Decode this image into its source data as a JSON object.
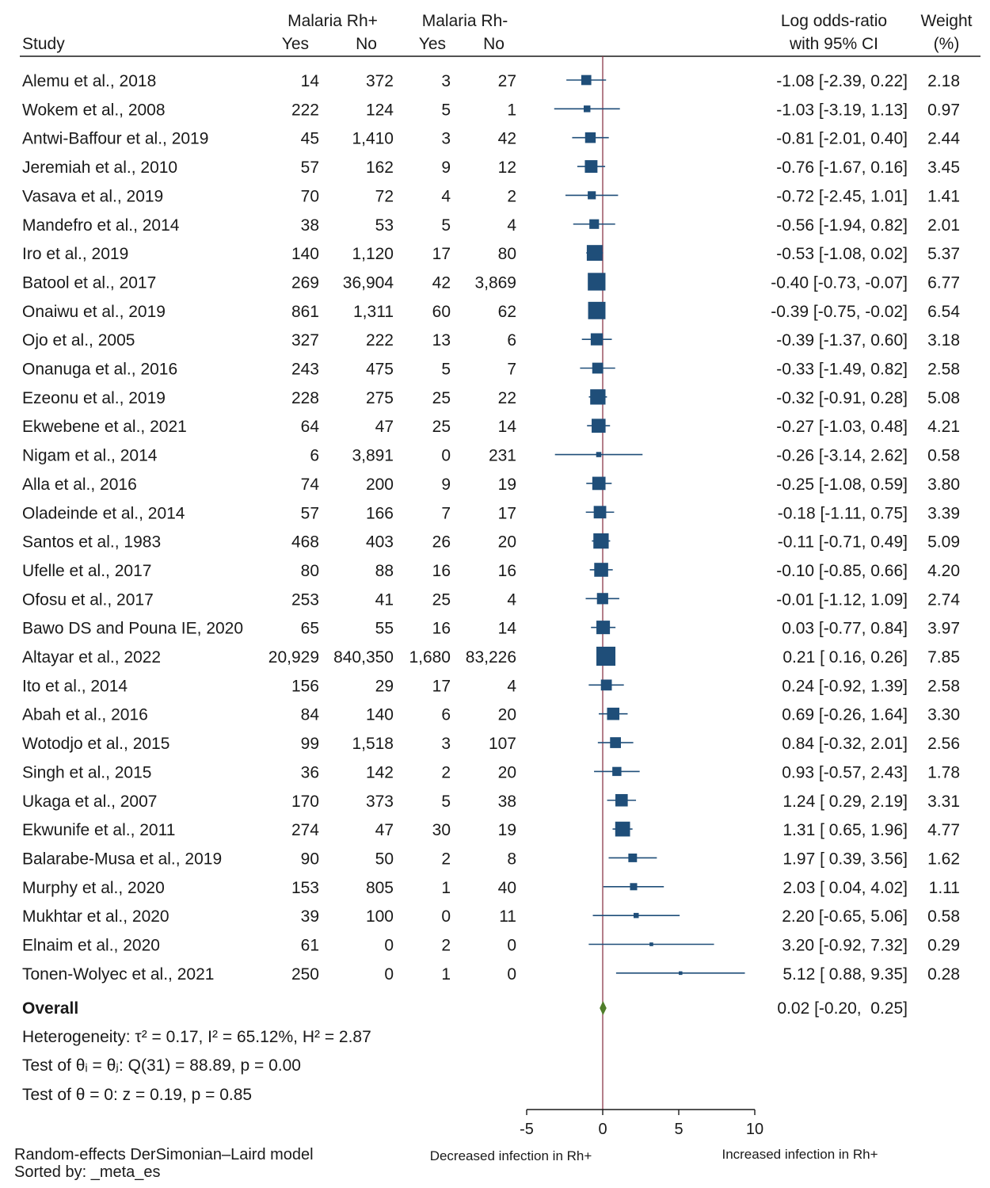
{
  "chart_data": {
    "type": "forest",
    "title": "",
    "columns": {
      "study": "Study",
      "rh_pos_group": "Malaria Rh+",
      "rh_neg_group": "Malaria Rh-",
      "yes": "Yes",
      "no": "No",
      "effect_line1": "Log odds-ratio",
      "effect_line2": "with 95% CI",
      "weight_line1": "Weight",
      "weight_line2": "(%)"
    },
    "studies": [
      {
        "name": "Alemu et al., 2018",
        "pos_yes": "14",
        "pos_no": "372",
        "neg_yes": "3",
        "neg_no": "27",
        "es": -1.08,
        "lo": -2.39,
        "hi": 0.22,
        "ci_text": "-1.08 [-2.39,  0.22]",
        "weight": 2.18,
        "weight_text": "2.18"
      },
      {
        "name": "Wokem et al., 2008",
        "pos_yes": "222",
        "pos_no": "124",
        "neg_yes": "5",
        "neg_no": "1",
        "es": -1.03,
        "lo": -3.19,
        "hi": 1.13,
        "ci_text": "-1.03 [-3.19,  1.13]",
        "weight": 0.97,
        "weight_text": "0.97"
      },
      {
        "name": "Antwi-Baffour et al., 2019",
        "pos_yes": "45",
        "pos_no": "1,410",
        "neg_yes": "3",
        "neg_no": "42",
        "es": -0.81,
        "lo": -2.01,
        "hi": 0.4,
        "ci_text": "-0.81 [-2.01,  0.40]",
        "weight": 2.44,
        "weight_text": "2.44"
      },
      {
        "name": "Jeremiah et al., 2010",
        "pos_yes": "57",
        "pos_no": "162",
        "neg_yes": "9",
        "neg_no": "12",
        "es": -0.76,
        "lo": -1.67,
        "hi": 0.16,
        "ci_text": "-0.76 [-1.67,  0.16]",
        "weight": 3.45,
        "weight_text": "3.45"
      },
      {
        "name": "Vasava et al., 2019",
        "pos_yes": "70",
        "pos_no": "72",
        "neg_yes": "4",
        "neg_no": "2",
        "es": -0.72,
        "lo": -2.45,
        "hi": 1.01,
        "ci_text": "-0.72 [-2.45,  1.01]",
        "weight": 1.41,
        "weight_text": "1.41"
      },
      {
        "name": "Mandefro et al., 2014",
        "pos_yes": "38",
        "pos_no": "53",
        "neg_yes": "5",
        "neg_no": "4",
        "es": -0.56,
        "lo": -1.94,
        "hi": 0.82,
        "ci_text": "-0.56 [-1.94,  0.82]",
        "weight": 2.01,
        "weight_text": "2.01"
      },
      {
        "name": "Iro et al., 2019",
        "pos_yes": "140",
        "pos_no": "1,120",
        "neg_yes": "17",
        "neg_no": "80",
        "es": -0.53,
        "lo": -1.08,
        "hi": 0.02,
        "ci_text": "-0.53 [-1.08,  0.02]",
        "weight": 5.37,
        "weight_text": "5.37"
      },
      {
        "name": "Batool et al., 2017",
        "pos_yes": "269",
        "pos_no": "36,904",
        "neg_yes": "42",
        "neg_no": "3,869",
        "es": -0.4,
        "lo": -0.73,
        "hi": -0.07,
        "ci_text": "-0.40 [-0.73, -0.07]",
        "weight": 6.77,
        "weight_text": "6.77"
      },
      {
        "name": "Onaiwu et al., 2019",
        "pos_yes": "861",
        "pos_no": "1,311",
        "neg_yes": "60",
        "neg_no": "62",
        "es": -0.39,
        "lo": -0.75,
        "hi": -0.02,
        "ci_text": "-0.39 [-0.75, -0.02]",
        "weight": 6.54,
        "weight_text": "6.54"
      },
      {
        "name": "Ojo et al., 2005",
        "pos_yes": "327",
        "pos_no": "222",
        "neg_yes": "13",
        "neg_no": "6",
        "es": -0.39,
        "lo": -1.37,
        "hi": 0.6,
        "ci_text": "-0.39 [-1.37,  0.60]",
        "weight": 3.18,
        "weight_text": "3.18"
      },
      {
        "name": "Onanuga et al., 2016",
        "pos_yes": "243",
        "pos_no": "475",
        "neg_yes": "5",
        "neg_no": "7",
        "es": -0.33,
        "lo": -1.49,
        "hi": 0.82,
        "ci_text": "-0.33 [-1.49,  0.82]",
        "weight": 2.58,
        "weight_text": "2.58"
      },
      {
        "name": "Ezeonu et al., 2019",
        "pos_yes": "228",
        "pos_no": "275",
        "neg_yes": "25",
        "neg_no": "22",
        "es": -0.32,
        "lo": -0.91,
        "hi": 0.28,
        "ci_text": "-0.32 [-0.91,  0.28]",
        "weight": 5.08,
        "weight_text": "5.08"
      },
      {
        "name": "Ekwebene et al., 2021",
        "pos_yes": "64",
        "pos_no": "47",
        "neg_yes": "25",
        "neg_no": "14",
        "es": -0.27,
        "lo": -1.03,
        "hi": 0.48,
        "ci_text": "-0.27 [-1.03,  0.48]",
        "weight": 4.21,
        "weight_text": "4.21"
      },
      {
        "name": "Nigam et al., 2014",
        "pos_yes": "6",
        "pos_no": "3,891",
        "neg_yes": "0",
        "neg_no": "231",
        "es": -0.26,
        "lo": -3.14,
        "hi": 2.62,
        "ci_text": "-0.26 [-3.14,  2.62]",
        "weight": 0.58,
        "weight_text": "0.58"
      },
      {
        "name": "Alla et al., 2016",
        "pos_yes": "74",
        "pos_no": "200",
        "neg_yes": "9",
        "neg_no": "19",
        "es": -0.25,
        "lo": -1.08,
        "hi": 0.59,
        "ci_text": "-0.25 [-1.08,  0.59]",
        "weight": 3.8,
        "weight_text": "3.80"
      },
      {
        "name": "Oladeinde et al., 2014",
        "pos_yes": "57",
        "pos_no": "166",
        "neg_yes": "7",
        "neg_no": "17",
        "es": -0.18,
        "lo": -1.11,
        "hi": 0.75,
        "ci_text": "-0.18 [-1.11,  0.75]",
        "weight": 3.39,
        "weight_text": "3.39"
      },
      {
        "name": "Santos et al., 1983",
        "pos_yes": "468",
        "pos_no": "403",
        "neg_yes": "26",
        "neg_no": "20",
        "es": -0.11,
        "lo": -0.71,
        "hi": 0.49,
        "ci_text": "-0.11 [-0.71,  0.49]",
        "weight": 5.09,
        "weight_text": "5.09"
      },
      {
        "name": "Ufelle et al., 2017",
        "pos_yes": "80",
        "pos_no": "88",
        "neg_yes": "16",
        "neg_no": "16",
        "es": -0.1,
        "lo": -0.85,
        "hi": 0.66,
        "ci_text": "-0.10 [-0.85,  0.66]",
        "weight": 4.2,
        "weight_text": "4.20"
      },
      {
        "name": "Ofosu et al., 2017",
        "pos_yes": "253",
        "pos_no": "41",
        "neg_yes": "25",
        "neg_no": "4",
        "es": -0.01,
        "lo": -1.12,
        "hi": 1.09,
        "ci_text": "-0.01 [-1.12,  1.09]",
        "weight": 2.74,
        "weight_text": "2.74"
      },
      {
        "name": "Bawo DS and Pouna IE, 2020",
        "pos_yes": "65",
        "pos_no": "55",
        "neg_yes": "16",
        "neg_no": "14",
        "es": 0.03,
        "lo": -0.77,
        "hi": 0.84,
        "ci_text": "0.03 [-0.77,  0.84]",
        "weight": 3.97,
        "weight_text": "3.97"
      },
      {
        "name": "Altayar et al., 2022",
        "pos_yes": "20,929",
        "pos_no": "840,350",
        "neg_yes": "1,680",
        "neg_no": "83,226",
        "es": 0.21,
        "lo": 0.16,
        "hi": 0.26,
        "ci_text": "0.21 [ 0.16,  0.26]",
        "weight": 7.85,
        "weight_text": "7.85"
      },
      {
        "name": "Ito et al., 2014",
        "pos_yes": "156",
        "pos_no": "29",
        "neg_yes": "17",
        "neg_no": "4",
        "es": 0.24,
        "lo": -0.92,
        "hi": 1.39,
        "ci_text": "0.24 [-0.92,  1.39]",
        "weight": 2.58,
        "weight_text": "2.58"
      },
      {
        "name": "Abah et al., 2016",
        "pos_yes": "84",
        "pos_no": "140",
        "neg_yes": "6",
        "neg_no": "20",
        "es": 0.69,
        "lo": -0.26,
        "hi": 1.64,
        "ci_text": "0.69 [-0.26,  1.64]",
        "weight": 3.3,
        "weight_text": "3.30"
      },
      {
        "name": "Wotodjo et al., 2015",
        "pos_yes": "99",
        "pos_no": "1,518",
        "neg_yes": "3",
        "neg_no": "107",
        "es": 0.84,
        "lo": -0.32,
        "hi": 2.01,
        "ci_text": "0.84 [-0.32,  2.01]",
        "weight": 2.56,
        "weight_text": "2.56"
      },
      {
        "name": "Singh et al., 2015",
        "pos_yes": "36",
        "pos_no": "142",
        "neg_yes": "2",
        "neg_no": "20",
        "es": 0.93,
        "lo": -0.57,
        "hi": 2.43,
        "ci_text": "0.93 [-0.57,  2.43]",
        "weight": 1.78,
        "weight_text": "1.78"
      },
      {
        "name": "Ukaga et al., 2007",
        "pos_yes": "170",
        "pos_no": "373",
        "neg_yes": "5",
        "neg_no": "38",
        "es": 1.24,
        "lo": 0.29,
        "hi": 2.19,
        "ci_text": "1.24 [ 0.29,  2.19]",
        "weight": 3.31,
        "weight_text": "3.31"
      },
      {
        "name": "Ekwunife et al., 2011",
        "pos_yes": "274",
        "pos_no": "47",
        "neg_yes": "30",
        "neg_no": "19",
        "es": 1.31,
        "lo": 0.65,
        "hi": 1.96,
        "ci_text": "1.31 [ 0.65,  1.96]",
        "weight": 4.77,
        "weight_text": "4.77"
      },
      {
        "name": "Balarabe-Musa et al., 2019",
        "pos_yes": "90",
        "pos_no": "50",
        "neg_yes": "2",
        "neg_no": "8",
        "es": 1.97,
        "lo": 0.39,
        "hi": 3.56,
        "ci_text": "1.97 [ 0.39,  3.56]",
        "weight": 1.62,
        "weight_text": "1.62"
      },
      {
        "name": "Murphy et al., 2020",
        "pos_yes": "153",
        "pos_no": "805",
        "neg_yes": "1",
        "neg_no": "40",
        "es": 2.03,
        "lo": 0.04,
        "hi": 4.02,
        "ci_text": "2.03 [ 0.04,  4.02]",
        "weight": 1.11,
        "weight_text": "1.11"
      },
      {
        "name": "Mukhtar et al., 2020",
        "pos_yes": "39",
        "pos_no": "100",
        "neg_yes": "0",
        "neg_no": "11",
        "es": 2.2,
        "lo": -0.65,
        "hi": 5.06,
        "ci_text": "2.20 [-0.65,  5.06]",
        "weight": 0.58,
        "weight_text": "0.58"
      },
      {
        "name": "Elnaim et al., 2020",
        "pos_yes": "61",
        "pos_no": "0",
        "neg_yes": "2",
        "neg_no": "0",
        "es": 3.2,
        "lo": -0.92,
        "hi": 7.32,
        "ci_text": "3.20 [-0.92,  7.32]",
        "weight": 0.29,
        "weight_text": "0.29"
      },
      {
        "name": "Tonen-Wolyec et al., 2021",
        "pos_yes": "250",
        "pos_no": "0",
        "neg_yes": "1",
        "neg_no": "0",
        "es": 5.12,
        "lo": 0.88,
        "hi": 9.35,
        "ci_text": "5.12 [ 0.88,  9.35]",
        "weight": 0.28,
        "weight_text": "0.28"
      }
    ],
    "overall": {
      "label": "Overall",
      "es": 0.02,
      "lo": -0.2,
      "hi": 0.25,
      "ci_text": "0.02 [-0.20,  0.25]"
    },
    "heterogeneity": "Heterogeneity: τ² = 0.17, I² = 65.12%, H² = 2.87",
    "test_homogeneity": "Test of θᵢ = θⱼ: Q(31) = 88.89, p = 0.00",
    "test_effect": "Test of θ = 0: z = 0.19, p = 0.85",
    "x_axis": {
      "ticks": [
        -5,
        0,
        5,
        10
      ],
      "tick_labels": [
        "-5",
        "0",
        "5",
        "10"
      ],
      "range": [
        -5,
        10
      ],
      "label_left": "Decreased infection in Rh+",
      "label_right": "Increased infection in Rh+"
    },
    "model_note": "Random-effects DerSimonian–Laird model",
    "sort_note": "Sorted by: _meta_es",
    "colors": {
      "marker": "#1f4e79",
      "overall": "#4f7d2a",
      "null_line": "#8b3a4a",
      "text": "#1a1a1a"
    }
  }
}
